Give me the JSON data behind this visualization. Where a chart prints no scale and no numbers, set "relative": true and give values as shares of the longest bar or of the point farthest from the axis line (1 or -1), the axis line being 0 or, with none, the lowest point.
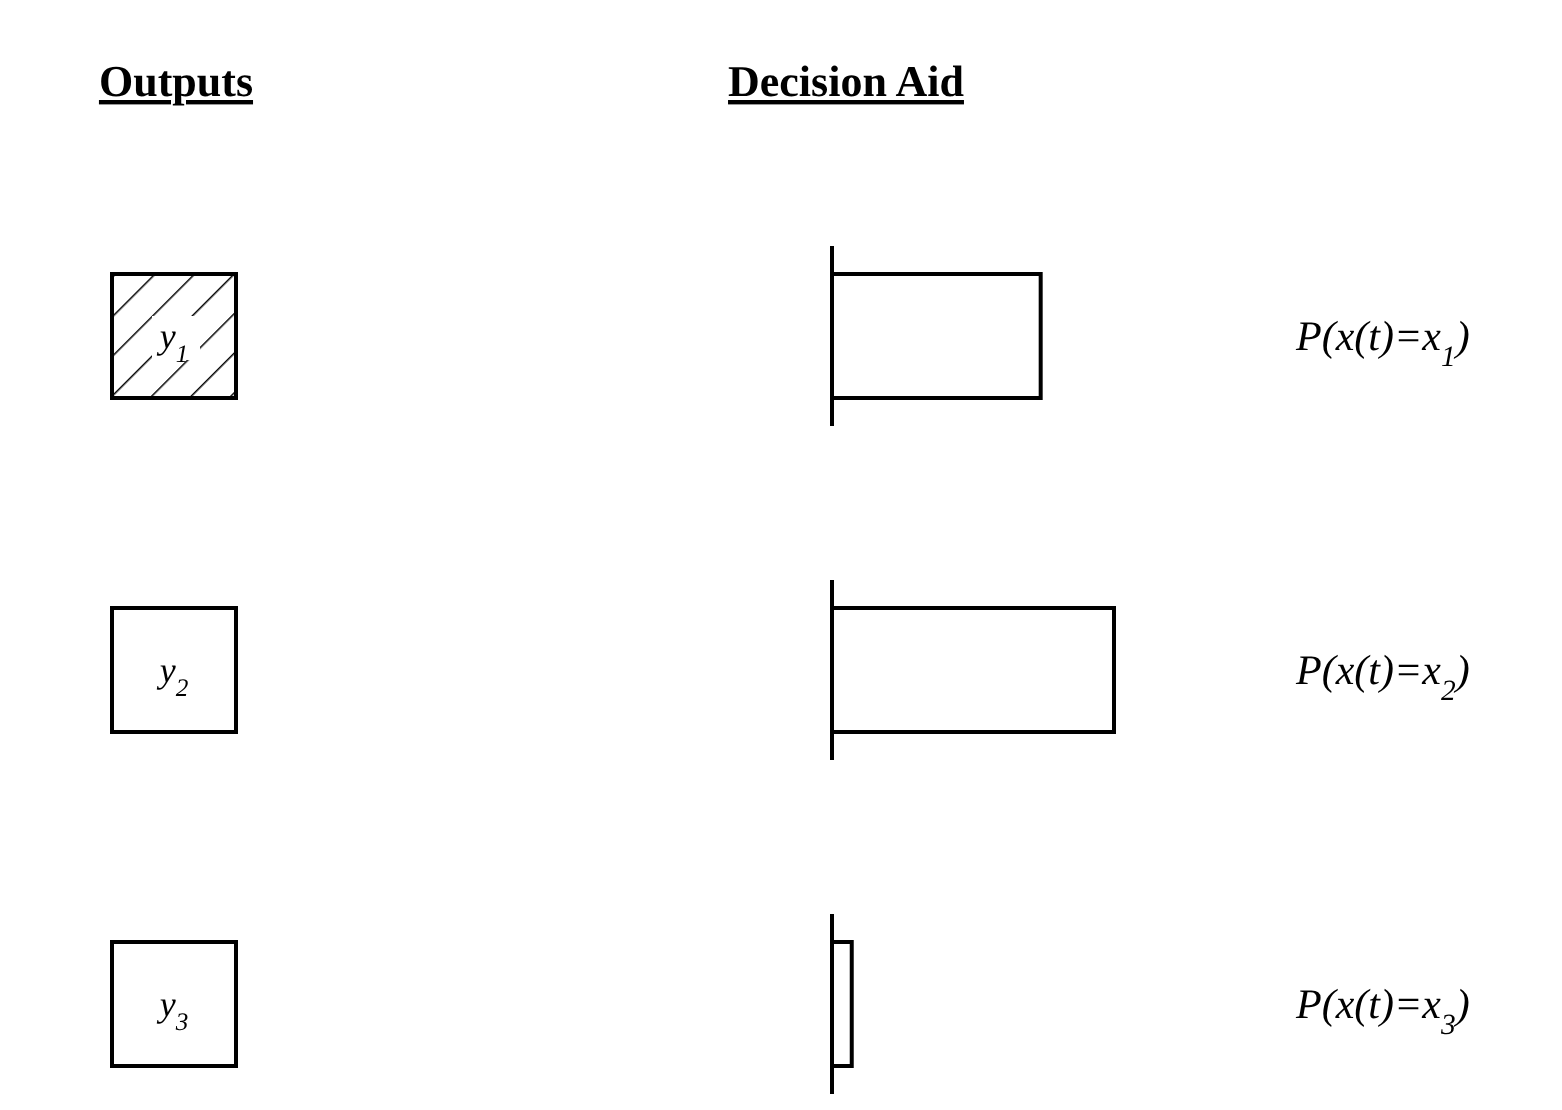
{
  "chart_data": {
    "type": "bar",
    "orientation": "horizontal",
    "relative": true,
    "title": "Decision Aid",
    "categories": [
      "P(x(t)=x$_{1}$)",
      "P(x(t)=x$_{2}$)",
      "P(x(t)=x$_{3}$)"
    ],
    "values": [
      0.74,
      1,
      0.07
    ],
    "color": "#ffffff",
    "annotations": [
      "Outputs",
      "y$_{1}$",
      "y$_{2}$",
      "y$_{3}$"
    ]
  }
}
